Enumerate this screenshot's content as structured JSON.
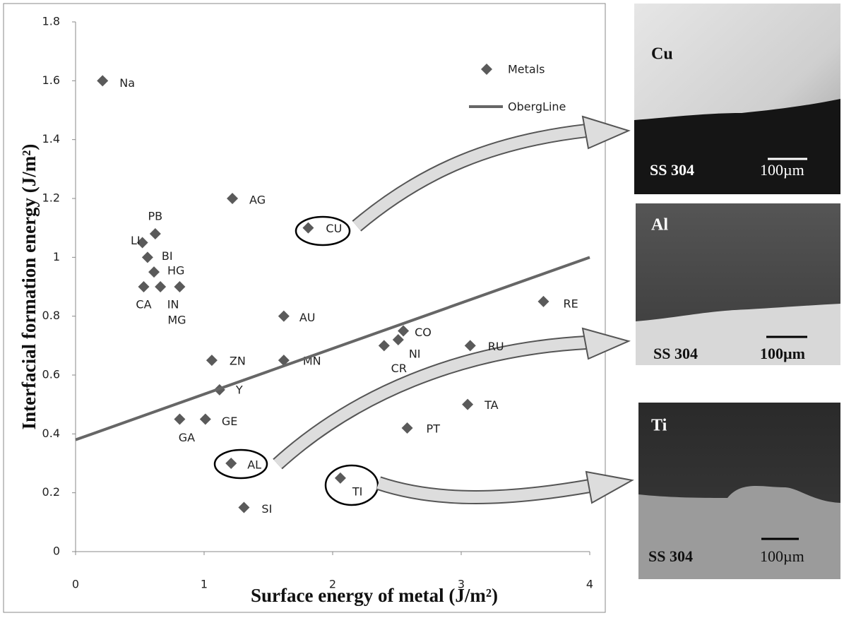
{
  "chart_data": {
    "type": "scatter",
    "x_label": "Surface energy of metal (J/m²)",
    "y_label": "Interfacial  formation energy (J/m²)",
    "xlim": [
      0,
      4
    ],
    "xticks": [
      0,
      1,
      2,
      3,
      4
    ],
    "ylim": [
      0,
      1.8
    ],
    "yticks": [
      0,
      0.2,
      0.4,
      0.6,
      0.8,
      1,
      1.2,
      1.4,
      1.6,
      1.8
    ],
    "legend": "top-right",
    "series": [
      {
        "name": "Metals",
        "color": "#5a5a5a",
        "marker": "diamond",
        "labels": [
          "Na",
          "AG",
          "CU",
          "PB",
          "LI",
          "BI",
          "HG",
          "CA",
          "IN",
          "MG",
          "AU",
          "RE",
          "CO",
          "NI",
          "CR",
          "RU",
          "ZN",
          "MN",
          "Y",
          "GA",
          "GE",
          "TA",
          "PT",
          "AL",
          "TI",
          "SI"
        ],
        "x": [
          0.21,
          1.22,
          1.81,
          0.62,
          0.52,
          0.56,
          0.61,
          0.53,
          0.66,
          0.81,
          1.62,
          3.64,
          2.55,
          2.51,
          2.4,
          3.07,
          1.06,
          1.62,
          1.12,
          0.81,
          1.01,
          3.05,
          2.58,
          1.21,
          2.06,
          1.31
        ],
        "values": [
          1.6,
          1.2,
          1.1,
          1.08,
          1.05,
          1.0,
          0.95,
          0.9,
          0.9,
          0.9,
          0.8,
          0.85,
          0.75,
          0.72,
          0.7,
          0.7,
          0.65,
          0.65,
          0.55,
          0.45,
          0.45,
          0.5,
          0.42,
          0.3,
          0.25,
          0.15
        ]
      },
      {
        "name": "ObergLine",
        "color": "#666666",
        "marker": "line",
        "x": [
          0,
          4
        ],
        "values": [
          0.38,
          1.0
        ]
      }
    ]
  },
  "panels": [
    {
      "label": "Cu",
      "substrate": "SS 304",
      "scale": "100µm"
    },
    {
      "label": "Al",
      "substrate": "SS 304",
      "scale": "100µm"
    },
    {
      "label": "Ti",
      "substrate": "SS 304",
      "scale": "100µm"
    }
  ]
}
